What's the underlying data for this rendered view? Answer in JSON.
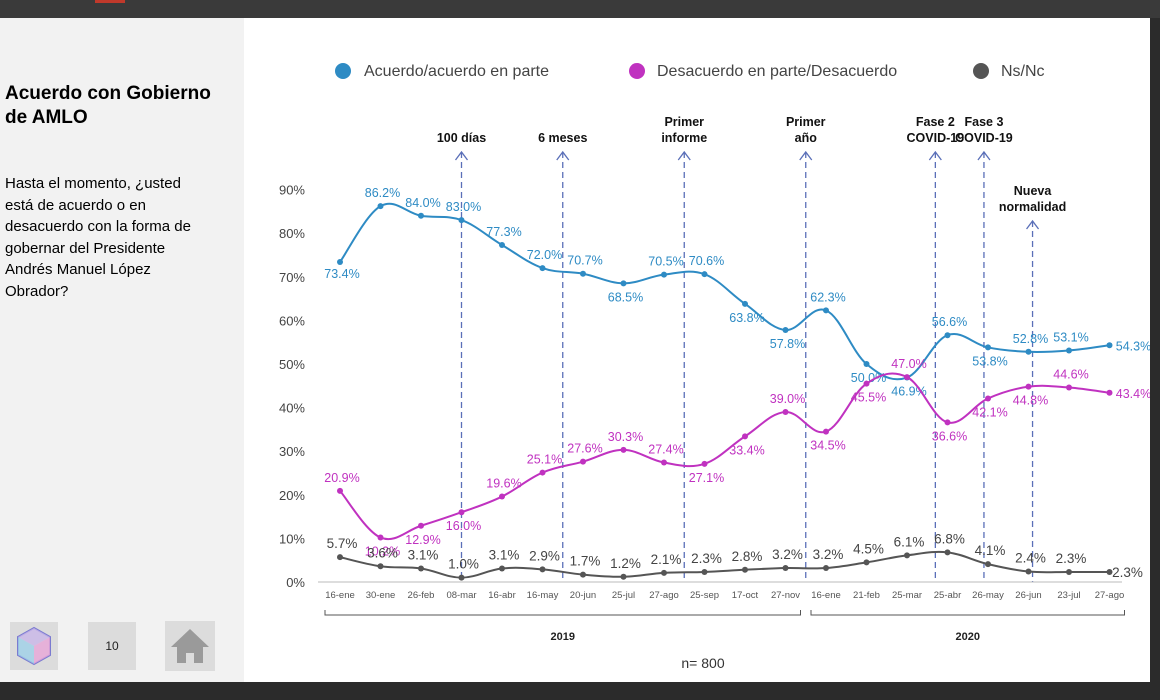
{
  "sidebar": {
    "title": "Acuerdo con Gobierno de AMLO",
    "question": "Hasta el momento, ¿usted está de acuerdo o en desacuerdo con la forma de gobernar del Presidente Andrés Manuel López Obrador?",
    "page_number": "10"
  },
  "colors": {
    "acuerdo": "#2e8bc4",
    "desacuerdo": "#c032c0",
    "nsnc": "#555555",
    "event": "#5a6fb8"
  },
  "chart_data": {
    "type": "line",
    "categories": [
      "16-ene",
      "30-ene",
      "26-feb",
      "08-mar",
      "16-abr",
      "16-may",
      "20-jun",
      "25-jul",
      "27-ago",
      "25-sep",
      "17-oct",
      "27-nov",
      "16-ene",
      "21-feb",
      "25-mar",
      "25-abr",
      "26-may",
      "26-jun",
      "23-jul",
      "27-ago"
    ],
    "series": [
      {
        "name": "Acuerdo/acuerdo en parte",
        "color": "#2e8bc4",
        "values": [
          73.4,
          86.2,
          84.0,
          83.0,
          77.3,
          72.0,
          70.7,
          68.5,
          70.5,
          70.6,
          63.8,
          57.8,
          62.3,
          50.0,
          46.9,
          56.6,
          53.8,
          52.8,
          53.1,
          54.3
        ],
        "labels": [
          "73.4%",
          "86.2%",
          "84.0%",
          "83.0%",
          "77.3%",
          "72.0%",
          "70.7%",
          "68.5%",
          "70.5%",
          "70.6%",
          "63.8%",
          "57.8%",
          "62.3%",
          "50.0%",
          "46.9%",
          "56.6%",
          "53.8%",
          "52.8%",
          "53.1%",
          "54.3%"
        ]
      },
      {
        "name": "Desacuerdo en parte/Desacuerdo",
        "color": "#c032c0",
        "values": [
          20.9,
          10.2,
          12.9,
          16.0,
          19.6,
          25.1,
          27.6,
          30.3,
          27.4,
          27.1,
          33.4,
          39.0,
          34.5,
          45.5,
          47.0,
          36.6,
          42.1,
          44.8,
          44.6,
          43.4
        ],
        "labels": [
          "20.9%",
          "10.2%",
          "12.9%",
          "16.0%",
          "19.6%",
          "25.1%",
          "27.6%",
          "30.3%",
          "27.4%",
          "27.1%",
          "33.4%",
          "39.0%",
          "34.5%",
          "45.5%",
          "47.0%",
          "36.6%",
          "42.1%",
          "44.8%",
          "44.6%",
          "43.4%"
        ]
      },
      {
        "name": "Ns/Nc",
        "color": "#555555",
        "values": [
          5.7,
          3.6,
          3.1,
          1.0,
          3.1,
          2.9,
          1.7,
          1.2,
          2.1,
          2.3,
          2.8,
          3.2,
          3.2,
          4.5,
          6.1,
          6.8,
          4.1,
          2.4,
          2.3,
          2.3
        ],
        "labels": [
          "5.7%",
          "3.6%",
          "3.1%",
          "1.0%",
          "3.1%",
          "2.9%",
          "1.7%",
          "1.2%",
          "2.1%",
          "2.3%",
          "2.8%",
          "3.2%",
          "3.2%",
          "4.5%",
          "6.1%",
          "6.8%",
          "4.1%",
          "2.4%",
          "2.3%",
          "2.3%"
        ]
      }
    ],
    "ylim": [
      0,
      90
    ],
    "yticks": [
      0,
      10,
      20,
      30,
      40,
      50,
      60,
      70,
      80,
      90
    ],
    "ytick_labels": [
      "0%",
      "10%",
      "20%",
      "30%",
      "40%",
      "50%",
      "60%",
      "70%",
      "80%",
      "90%"
    ],
    "events": [
      {
        "label": "100 días",
        "at": 3.0
      },
      {
        "label": "6 meses",
        "at": 5.5
      },
      {
        "label": "Primer informe",
        "at": 8.5
      },
      {
        "label": "Primer año",
        "at": 11.5
      },
      {
        "label": "Fase 2 COVID-19",
        "at": 14.7
      },
      {
        "label": "Fase 3 COVID-19",
        "at": 15.9
      },
      {
        "label": "Nueva normalidad",
        "at": 17.1
      }
    ],
    "years": [
      {
        "label": "2019",
        "from": 0,
        "to": 11
      },
      {
        "label": "2020",
        "from": 12,
        "to": 19
      }
    ],
    "legend_position": "top",
    "footnote": "n= 800"
  }
}
